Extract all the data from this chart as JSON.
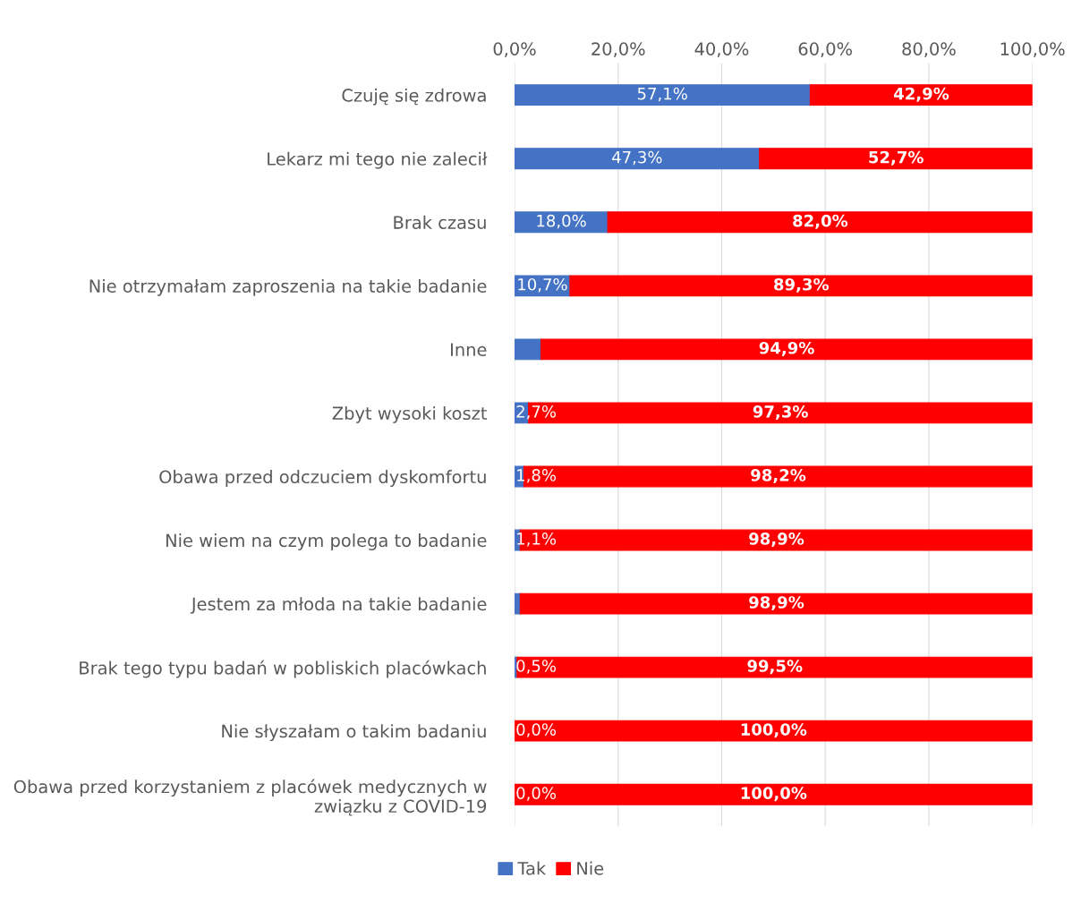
{
  "chart_data": {
    "type": "bar",
    "orientation": "horizontal",
    "stacked": true,
    "categories": [
      "Czuję się zdrowa",
      "Lekarz mi tego nie zalecił",
      "Brak czasu",
      "Nie otrzymałam zaproszenia na takie badanie",
      "Inne",
      "Zbyt wysoki koszt",
      "Obawa przed odczuciem dyskomfortu",
      "Nie wiem na czym polega to badanie",
      "Jestem za młoda na takie badanie",
      "Brak tego typu badań w pobliskich placówkach",
      "Nie słyszałam o takim badaniu",
      "Obawa przed korzystaniem z placówek medycznych w\nzwiązku z COVID-19"
    ],
    "series": [
      {
        "name": "Tak",
        "color": "#4472c4",
        "values": [
          57.1,
          47.3,
          18.0,
          10.7,
          5.1,
          2.7,
          1.8,
          1.1,
          1.1,
          0.5,
          0.0,
          0.0
        ],
        "value_labels": [
          "57,1%",
          "47,3%",
          "18,0%",
          "10,7%",
          null,
          "2,7%",
          "1,8%",
          "1,1%",
          null,
          "0,5%",
          "0,0%",
          "0,0%"
        ]
      },
      {
        "name": "Nie",
        "color": "#ff0000",
        "values": [
          42.9,
          52.7,
          82.0,
          89.3,
          94.9,
          97.3,
          98.2,
          98.9,
          98.9,
          99.5,
          100.0,
          100.0
        ],
        "value_labels": [
          "42,9%",
          "52,7%",
          "82,0%",
          "89,3%",
          "94,9%",
          "97,3%",
          "98,2%",
          "98,9%",
          "98,9%",
          "99,5%",
          "100,0%",
          "100,0%"
        ]
      }
    ],
    "xlim": [
      0,
      100
    ],
    "xticks": [
      {
        "value": 0,
        "label": "0,0%"
      },
      {
        "value": 20,
        "label": "20,0%"
      },
      {
        "value": 40,
        "label": "40,0%"
      },
      {
        "value": 60,
        "label": "60,0%"
      },
      {
        "value": 80,
        "label": "80,0%"
      },
      {
        "value": 100,
        "label": "100,0%"
      }
    ],
    "grid": "x",
    "legend": "bottom"
  }
}
